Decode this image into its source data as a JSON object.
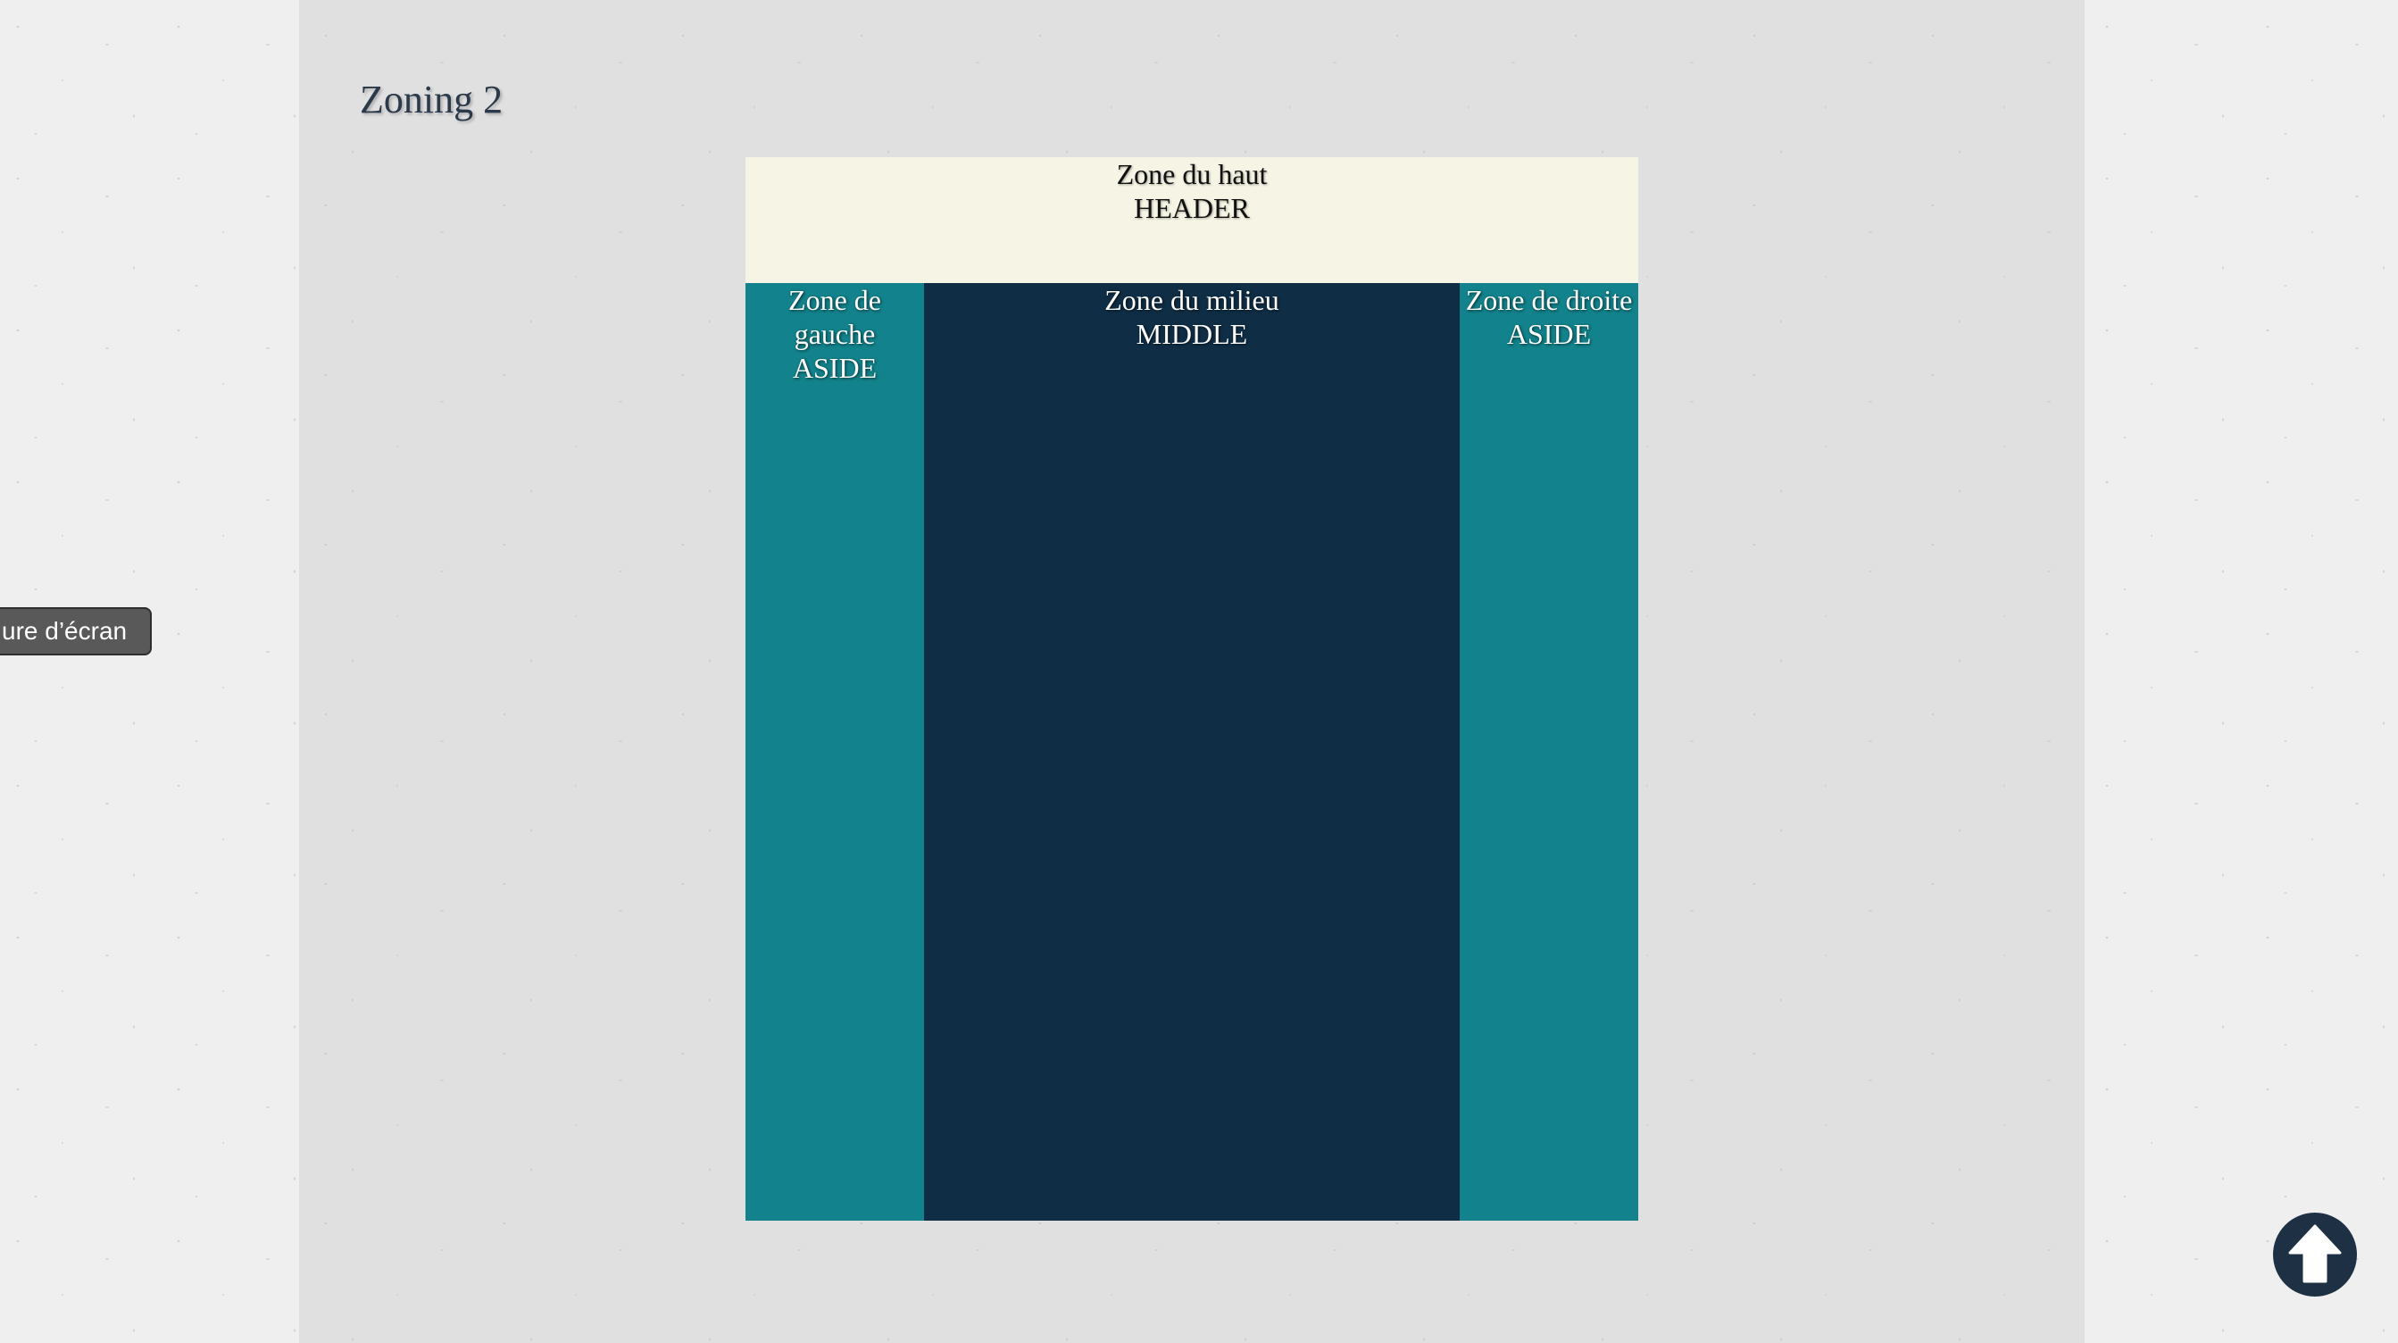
{
  "page": {
    "title": "Zoning 2"
  },
  "zones": {
    "header": {
      "line1": "Zone du haut",
      "line2": "HEADER"
    },
    "left": {
      "line1": "Zone de",
      "line2": "gauche",
      "line3": "ASIDE"
    },
    "middle": {
      "line1": "Zone du milieu",
      "line2": "MIDDLE"
    },
    "right": {
      "line1": "Zone de droite",
      "line2": "ASIDE"
    }
  },
  "screenshot_tab": {
    "label": "ure d’écran"
  },
  "scroll_top": {
    "icon": "arrow-up-circle-icon"
  },
  "colors": {
    "header": "#f6f4e4",
    "aside": "#12838c",
    "middle": "#0f2e46",
    "background": "#e0e0e0",
    "scroll_button": "#1d3044"
  }
}
